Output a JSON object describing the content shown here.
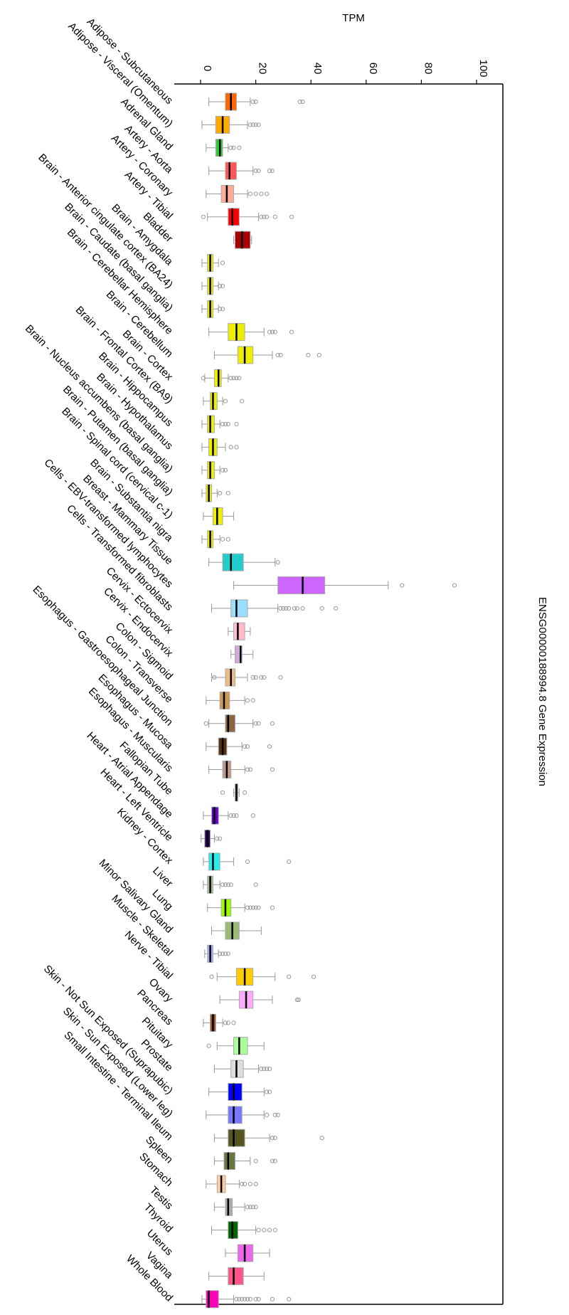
{
  "chart_data": {
    "type": "box",
    "title": "ENSG00000188994.8 Gene Expression",
    "xlabel": "TPM",
    "xlim": [
      -10,
      110
    ],
    "xticks": [
      0,
      20,
      40,
      60,
      80,
      100
    ],
    "tick_labels": [
      "0",
      "20",
      "40",
      "60",
      "80",
      "100"
    ],
    "categories": [
      {
        "name": "Adipose - Subcutaneous",
        "color": "#ff6600",
        "min": 3,
        "q1": 9,
        "median": 11,
        "q3": 13,
        "max": 18,
        "outliers": [
          19,
          20,
          36,
          37
        ]
      },
      {
        "name": "Adipose - Visceral (Omentum)",
        "color": "#ffaa00",
        "min": 0.5,
        "q1": 5.5,
        "median": 8,
        "q3": 10.5,
        "max": 17,
        "outliers": [
          18,
          19,
          20,
          21
        ]
      },
      {
        "name": "Adrenal Gland",
        "color": "#33cc33",
        "min": 2,
        "q1": 5.5,
        "median": 7,
        "q3": 8,
        "max": 10,
        "outliers": [
          11,
          12,
          14
        ]
      },
      {
        "name": "Artery - Aorta",
        "color": "#ff5555",
        "min": 3,
        "q1": 9,
        "median": 10.5,
        "q3": 13,
        "max": 19,
        "outliers": [
          20,
          21,
          25,
          26
        ]
      },
      {
        "name": "Artery - Coronary",
        "color": "#ffaa99",
        "min": 2,
        "q1": 7.5,
        "median": 9.5,
        "q3": 12,
        "max": 17,
        "outliers": [
          18,
          20,
          22,
          24
        ]
      },
      {
        "name": "Artery - Tibial",
        "color": "#ff0000",
        "min": 2.5,
        "q1": 10,
        "median": 11.5,
        "q3": 14,
        "max": 21,
        "outliers": [
          22,
          23,
          24,
          27,
          33,
          1
        ]
      },
      {
        "name": "Bladder",
        "color": "#aa0000",
        "min": 12,
        "q1": 12.5,
        "median": 15,
        "q3": 18,
        "max": 18.5,
        "outliers": []
      },
      {
        "name": "Brain - Amygdala",
        "color": "#eeee00",
        "min": 0.5,
        "q1": 2.5,
        "median": 3.5,
        "q3": 4.5,
        "max": 6.5,
        "outliers": [
          8
        ]
      },
      {
        "name": "Brain - Anterior cingulate cortex (BA24)",
        "color": "#eeee00",
        "min": 0.5,
        "q1": 2.5,
        "median": 3.5,
        "q3": 4.5,
        "max": 6.5,
        "outliers": [
          7,
          8
        ]
      },
      {
        "name": "Brain - Caudate (basal ganglia)",
        "color": "#eeee00",
        "min": 0.5,
        "q1": 2.5,
        "median": 3.5,
        "q3": 4.5,
        "max": 6.5,
        "outliers": [
          7,
          8
        ]
      },
      {
        "name": "Brain - Cerebellar Hemisphere",
        "color": "#eeee00",
        "min": 3,
        "q1": 10,
        "median": 13,
        "q3": 16,
        "max": 23,
        "outliers": [
          25,
          26,
          27,
          33
        ]
      },
      {
        "name": "Brain - Cerebellum",
        "color": "#eeee00",
        "min": 5,
        "q1": 13.5,
        "median": 16,
        "q3": 19,
        "max": 26,
        "outliers": [
          28,
          29,
          39,
          43
        ]
      },
      {
        "name": "Brain - Cortex",
        "color": "#eeee00",
        "min": 1.5,
        "q1": 5,
        "median": 6.5,
        "q3": 7.5,
        "max": 10,
        "outliers": [
          11,
          12,
          13,
          14,
          1
        ]
      },
      {
        "name": "Brain - Frontal Cortex (BA9)",
        "color": "#eeee00",
        "min": 1,
        "q1": 3.5,
        "median": 4.5,
        "q3": 6,
        "max": 8,
        "outliers": [
          9,
          15
        ]
      },
      {
        "name": "Brain - Hippocampus",
        "color": "#eeee00",
        "min": 0.5,
        "q1": 2.5,
        "median": 3.5,
        "q3": 5,
        "max": 7,
        "outliers": [
          8,
          9,
          10,
          13
        ]
      },
      {
        "name": "Brain - Hypothalamus",
        "color": "#eeee00",
        "min": 0.5,
        "q1": 3,
        "median": 4.5,
        "q3": 6,
        "max": 9,
        "outliers": [
          11,
          13
        ]
      },
      {
        "name": "Brain - Nucleus accumbens (basal ganglia)",
        "color": "#eeee00",
        "min": 0.5,
        "q1": 2.5,
        "median": 3.5,
        "q3": 5,
        "max": 7,
        "outliers": [
          8,
          9
        ]
      },
      {
        "name": "Brain - Putamen (basal ganglia)",
        "color": "#eeee00",
        "min": 0.5,
        "q1": 2,
        "median": 3,
        "q3": 4,
        "max": 6,
        "outliers": [
          7,
          10
        ]
      },
      {
        "name": "Brain - Spinal cord (cervical c-1)",
        "color": "#eeee00",
        "min": 1,
        "q1": 4.5,
        "median": 6,
        "q3": 8,
        "max": 12,
        "outliers": []
      },
      {
        "name": "Brain - Substantia nigra",
        "color": "#eeee00",
        "min": 0.5,
        "q1": 2.5,
        "median": 3.5,
        "q3": 4.5,
        "max": 7,
        "outliers": [
          8,
          10
        ]
      },
      {
        "name": "Breast - Mammary Tissue",
        "color": "#22cccc",
        "min": 3,
        "q1": 8,
        "median": 11,
        "q3": 15.5,
        "max": 27,
        "outliers": [
          28
        ]
      },
      {
        "name": "Cells - EBV-transformed lymphocytes",
        "color": "#cc66ff",
        "min": 12,
        "q1": 28,
        "median": 37,
        "q3": 45,
        "max": 68,
        "outliers": [
          73,
          92
        ]
      },
      {
        "name": "Cells - Transformed fibroblasts",
        "color": "#99ddff",
        "min": 4,
        "q1": 11,
        "median": 13,
        "q3": 17,
        "max": 28,
        "outliers": [
          29,
          30,
          31,
          32,
          34,
          35,
          37,
          44,
          49
        ]
      },
      {
        "name": "Cervix - Ectocervix",
        "color": "#ffbbcc",
        "min": 10,
        "q1": 12,
        "median": 13.5,
        "q3": 16,
        "max": 18,
        "outliers": []
      },
      {
        "name": "Cervix - Endocervix",
        "color": "#ccaadd",
        "min": 11,
        "q1": 12.5,
        "median": 14.5,
        "q3": 15,
        "max": 19,
        "outliers": []
      },
      {
        "name": "Colon - Sigmoid",
        "color": "#eebb88",
        "min": 4,
        "q1": 9,
        "median": 11,
        "q3": 12.5,
        "max": 17,
        "outliers": [
          5,
          19,
          20,
          22,
          23,
          29
        ]
      },
      {
        "name": "Colon - Transverse",
        "color": "#cc9955",
        "min": 2,
        "q1": 7,
        "median": 8.5,
        "q3": 10.5,
        "max": 16,
        "outliers": [
          17,
          19
        ]
      },
      {
        "name": "Esophagus - Gastroesophageal Junction",
        "color": "#886644",
        "min": 3,
        "q1": 9,
        "median": 10,
        "q3": 12.5,
        "max": 19,
        "outliers": [
          20,
          21,
          26,
          2
        ]
      },
      {
        "name": "Esophagus - Mucosa",
        "color": "#553311",
        "min": 2,
        "q1": 6.5,
        "median": 8,
        "q3": 9.5,
        "max": 15,
        "outliers": [
          16,
          17,
          25
        ]
      },
      {
        "name": "Esophagus - Muscularis",
        "color": "#bb9988",
        "min": 3,
        "q1": 8,
        "median": 9.5,
        "q3": 11,
        "max": 16,
        "outliers": [
          17,
          18,
          26
        ]
      },
      {
        "name": "Fallopian Tube",
        "color": "#ffcccc",
        "min": 12,
        "q1": 12.5,
        "median": 13,
        "q3": 13.5,
        "max": 14,
        "outliers": [
          8,
          16
        ]
      },
      {
        "name": "Heart - Atrial Appendage",
        "color": "#6600cc",
        "min": 1,
        "q1": 4,
        "median": 5,
        "q3": 6.5,
        "max": 10,
        "outliers": [
          11,
          12,
          13,
          19
        ]
      },
      {
        "name": "Heart - Left Ventricle",
        "color": "#330066",
        "min": 0.2,
        "q1": 1.5,
        "median": 2.5,
        "q3": 3.5,
        "max": 5,
        "outliers": [
          6,
          7
        ]
      },
      {
        "name": "Kidney - Cortex",
        "color": "#22eeee",
        "min": 1,
        "q1": 3,
        "median": 4.5,
        "q3": 7,
        "max": 12,
        "outliers": [
          17,
          32
        ]
      },
      {
        "name": "Liver",
        "color": "#aabb99",
        "min": 1,
        "q1": 2.5,
        "median": 3.5,
        "q3": 4.5,
        "max": 7,
        "outliers": [
          8,
          9,
          10,
          11,
          20
        ]
      },
      {
        "name": "Lung",
        "color": "#99ff00",
        "min": 2.5,
        "q1": 7.5,
        "median": 9,
        "q3": 11,
        "max": 16,
        "outliers": [
          17,
          18,
          19,
          20,
          21,
          26
        ]
      },
      {
        "name": "Minor Salivary Gland",
        "color": "#99bb77",
        "min": 4,
        "q1": 9,
        "median": 11.5,
        "q3": 14,
        "max": 22,
        "outliers": []
      },
      {
        "name": "Muscle - Skeletal",
        "color": "#aaaaff",
        "min": 1.5,
        "q1": 2.5,
        "median": 3.5,
        "q3": 4.5,
        "max": 6.5,
        "outliers": [
          7,
          8,
          9,
          10
        ]
      },
      {
        "name": "Nerve - Tibial",
        "color": "#ffcc00",
        "min": 6,
        "q1": 13,
        "median": 16,
        "q3": 19,
        "max": 27,
        "outliers": [
          4,
          32,
          41
        ]
      },
      {
        "name": "Ovary",
        "color": "#ffaaff",
        "min": 7,
        "q1": 14,
        "median": 16.5,
        "q3": 19,
        "max": 26,
        "outliers": [
          35,
          35.5
        ]
      },
      {
        "name": "Pancreas",
        "color": "#995522",
        "min": 1,
        "q1": 3.5,
        "median": 4.5,
        "q3": 5.5,
        "max": 8,
        "outliers": [
          9,
          10,
          12
        ]
      },
      {
        "name": "Pituitary",
        "color": "#aaff99",
        "min": 6,
        "q1": 12,
        "median": 14,
        "q3": 17,
        "max": 23,
        "outliers": [
          3
        ]
      },
      {
        "name": "Prostate",
        "color": "#dddddd",
        "min": 5,
        "q1": 11,
        "median": 13,
        "q3": 15.5,
        "max": 21,
        "outliers": [
          22,
          23,
          24,
          25
        ]
      },
      {
        "name": "Skin - Not Sun Exposed (Suprapubic)",
        "color": "#0000ff",
        "min": 3,
        "q1": 10,
        "median": 12,
        "q3": 15,
        "max": 23,
        "outliers": [
          24,
          25
        ]
      },
      {
        "name": "Skin - Sun Exposed (Lower leg)",
        "color": "#7777ff",
        "min": 2,
        "q1": 10,
        "median": 12,
        "q3": 15,
        "max": 23,
        "outliers": [
          24,
          27,
          28
        ]
      },
      {
        "name": "Small Intestine - Terminal Ileum",
        "color": "#555522",
        "min": 5,
        "q1": 10,
        "median": 12,
        "q3": 16,
        "max": 25,
        "outliers": [
          26,
          27,
          44
        ]
      },
      {
        "name": "Spleen",
        "color": "#667744",
        "min": 5,
        "q1": 8.5,
        "median": 10,
        "q3": 12.5,
        "max": 18,
        "outliers": [
          20,
          26,
          27
        ]
      },
      {
        "name": "Stomach",
        "color": "#ffcc99",
        "min": 2,
        "q1": 6,
        "median": 7.5,
        "q3": 9,
        "max": 14,
        "outliers": [
          15,
          16,
          18,
          20
        ]
      },
      {
        "name": "Testis",
        "color": "#aaaaaa",
        "min": 5,
        "q1": 9,
        "median": 10,
        "q3": 11.5,
        "max": 16,
        "outliers": [
          17,
          18,
          19,
          20
        ]
      },
      {
        "name": "Thyroid",
        "color": "#006600",
        "min": 4,
        "q1": 10,
        "median": 11.5,
        "q3": 13.5,
        "max": 20,
        "outliers": [
          21,
          23,
          25,
          27
        ]
      },
      {
        "name": "Uterus",
        "color": "#ee66ee",
        "min": 9,
        "q1": 13.5,
        "median": 16,
        "q3": 19,
        "max": 25,
        "outliers": []
      },
      {
        "name": "Vagina",
        "color": "#ff5588",
        "min": 3,
        "q1": 10,
        "median": 12,
        "q3": 15.5,
        "max": 23,
        "outliers": []
      },
      {
        "name": "Whole Blood",
        "color": "#ff00bb",
        "min": 0.5,
        "q1": 2,
        "median": 3,
        "q3": 6.5,
        "max": 12,
        "outliers": [
          13,
          14,
          15,
          16,
          17,
          18,
          20,
          21,
          26,
          32
        ]
      }
    ]
  }
}
